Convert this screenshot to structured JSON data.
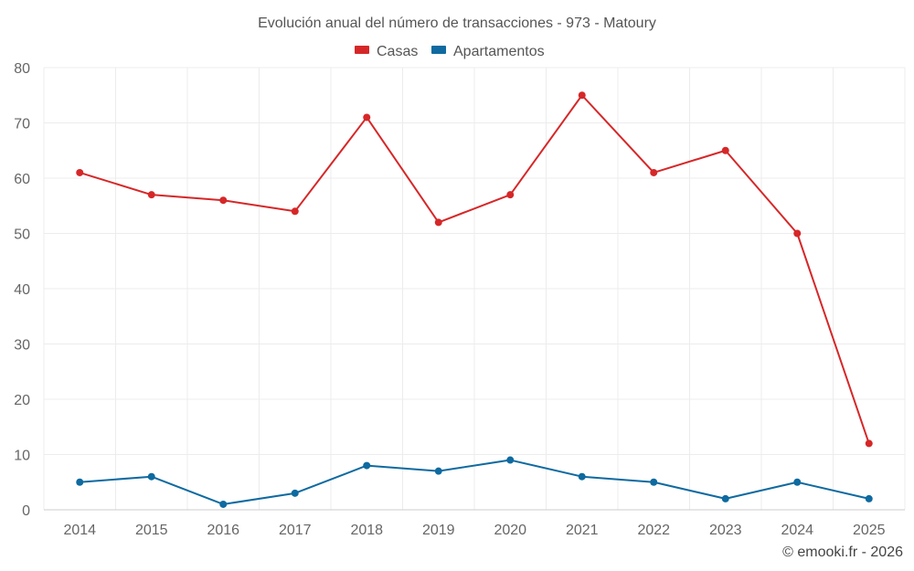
{
  "chart_data": {
    "type": "line",
    "title": "Evolución anual del número de transacciones - 973 - Matoury",
    "categories": [
      "2014",
      "2015",
      "2016",
      "2017",
      "2018",
      "2019",
      "2020",
      "2021",
      "2022",
      "2023",
      "2024",
      "2025"
    ],
    "series": [
      {
        "name": "Casas",
        "color": "#d62728",
        "values": [
          61,
          57,
          56,
          54,
          71,
          52,
          57,
          75,
          61,
          65,
          50,
          12
        ]
      },
      {
        "name": "Apartamentos",
        "color": "#0e6aa0",
        "values": [
          5,
          6,
          1,
          3,
          8,
          7,
          9,
          6,
          5,
          2,
          5,
          2
        ]
      }
    ],
    "ylim": [
      0,
      80
    ],
    "yticks": [
      "0",
      "10",
      "20",
      "30",
      "40",
      "50",
      "60",
      "70",
      "80"
    ],
    "xlabel": "",
    "ylabel": "",
    "grid": true,
    "legend": "top-center"
  },
  "credit": "© emooki.fr - 2026"
}
